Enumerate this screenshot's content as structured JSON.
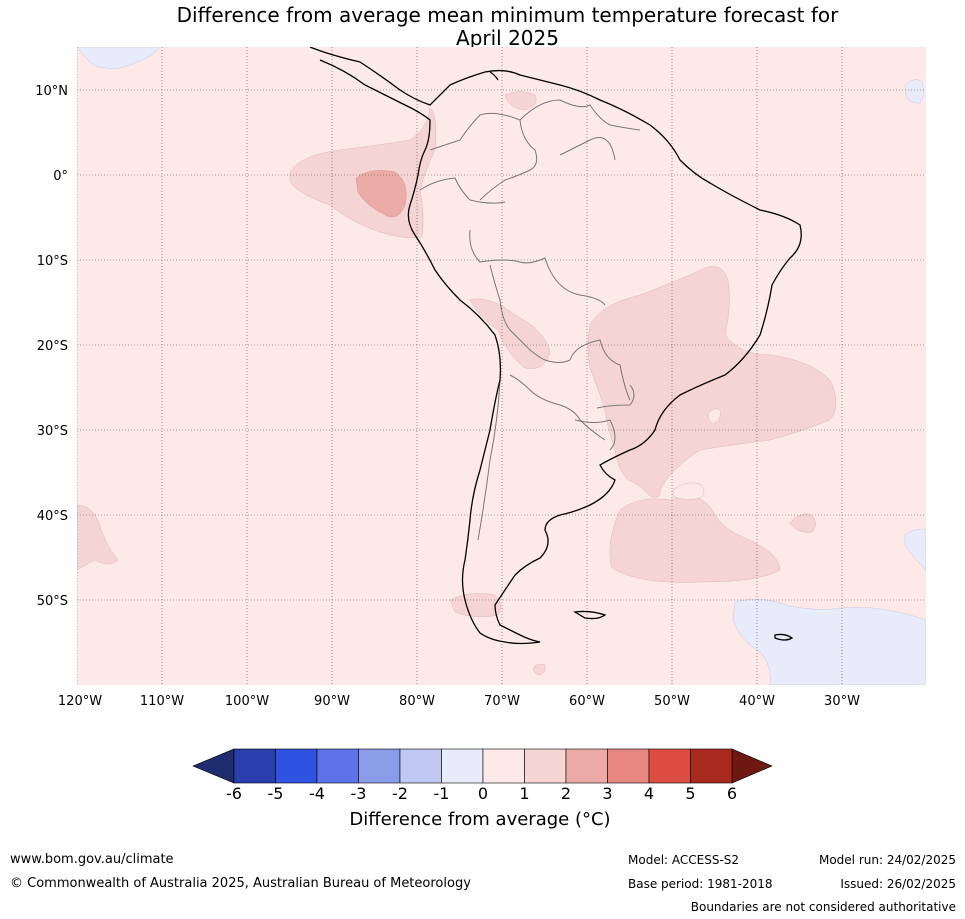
{
  "title_line1": "Difference from average mean minimum temperature forecast for",
  "title_line2": "April 2025",
  "map": {
    "lat_labels": [
      "10°N",
      "0°",
      "10°S",
      "20°S",
      "30°S",
      "40°S",
      "50°S"
    ],
    "lon_labels": [
      "120°W",
      "110°W",
      "100°W",
      "90°W",
      "80°W",
      "70°W",
      "60°W",
      "50°W",
      "40°W",
      "30°W"
    ]
  },
  "colorbar": {
    "title": "Difference from average (°C)",
    "tick_labels": [
      "-6",
      "-5",
      "-4",
      "-3",
      "-2",
      "-1",
      "0",
      "1",
      "2",
      "3",
      "4",
      "5",
      "6"
    ],
    "colors": [
      "#293fad",
      "#3052e0",
      "#5c72e6",
      "#8a9be8",
      "#c0c7f0",
      "#e8ebf9",
      "#fce9e8",
      "#f5d5d3",
      "#ecaba7",
      "#e88680",
      "#db4d40",
      "#a9291f"
    ],
    "under_color": "#1f2c6e",
    "over_color": "#6e1812"
  },
  "footer": {
    "website": "www.bom.gov.au/climate",
    "copyright": "© Commonwealth of Australia 2025, Australian Bureau of Meteorology",
    "model": "Model: ACCESS-S2",
    "base_period": "Base period: 1981-2018",
    "model_run": "Model run: 24/02/2025",
    "issued": "Issued: 26/02/2025",
    "boundaries": "Boundaries are not considered authoritative"
  }
}
